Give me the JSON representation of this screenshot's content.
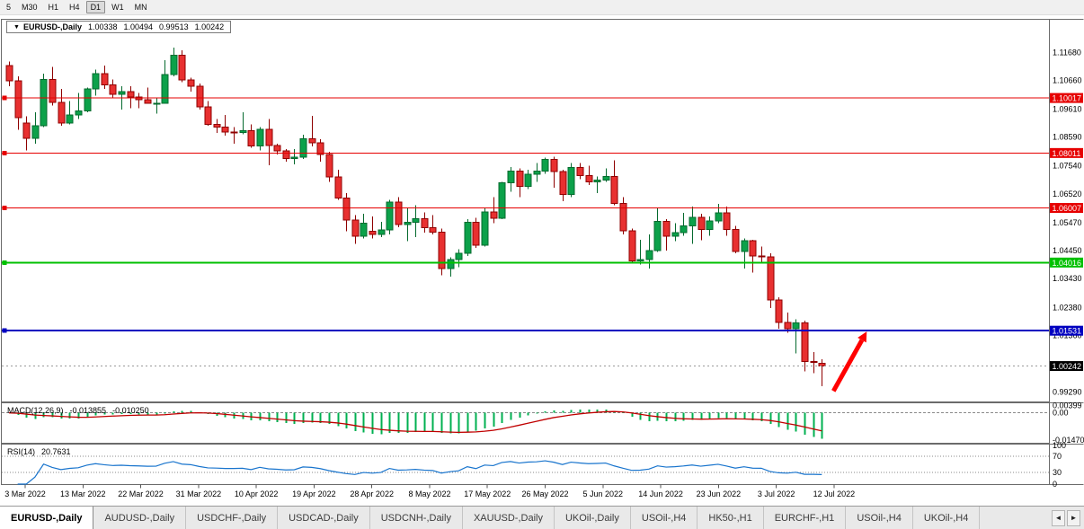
{
  "toolbar": {
    "timeframes": [
      {
        "label": "5",
        "active": false
      },
      {
        "label": "M30",
        "active": false
      },
      {
        "label": "H1",
        "active": false
      },
      {
        "label": "H4",
        "active": false
      },
      {
        "label": "D1",
        "active": true
      },
      {
        "label": "W1",
        "active": false
      },
      {
        "label": "MN",
        "active": false
      }
    ]
  },
  "chart_header": {
    "triangle": "▼",
    "symbol": "EURUSD-,Daily",
    "open": "1.00338",
    "high": "1.00494",
    "low": "0.99513",
    "close": "1.00242"
  },
  "price_axis_ticks": [
    "1.11680",
    "1.10660",
    "1.09610",
    "1.08590",
    "1.07540",
    "1.06520",
    "1.05470",
    "1.04450",
    "1.03430",
    "1.02380",
    "1.01360",
    "0.99290"
  ],
  "hlines": [
    {
      "price": 1.10017,
      "label": "1.10017",
      "color": "#e60000",
      "width": 1
    },
    {
      "price": 1.08011,
      "label": "1.08011",
      "color": "#e60000",
      "width": 1
    },
    {
      "price": 1.06007,
      "label": "1.06007",
      "color": "#e60000",
      "width": 1
    },
    {
      "price": 1.04016,
      "label": "1.04016",
      "color": "#00c000",
      "width": 2
    },
    {
      "price": 1.01531,
      "label": "1.01531",
      "color": "#0000c0",
      "width": 2
    }
  ],
  "current_price": {
    "price": 1.00242,
    "label": "1.00242",
    "color": "#000000"
  },
  "date_axis": [
    "3 Mar 2022",
    "13 Mar 2022",
    "22 Mar 2022",
    "31 Mar 2022",
    "10 Apr 2022",
    "19 Apr 2022",
    "28 Apr 2022",
    "8 May 2022",
    "17 May 2022",
    "26 May 2022",
    "5 Jun 2022",
    "14 Jun 2022",
    "23 Jun 2022",
    "3 Jul 2022",
    "12 Jul 2022"
  ],
  "macd_panel": {
    "label": "MACD(12,26,9)",
    "value_main": "-0.013855",
    "value_signal": "-0.010250",
    "axis_max": "0.00399",
    "axis_zero": "0.00",
    "axis_min": "-0.01470",
    "histogram_color": "#00b050",
    "signal_color": "#c00000"
  },
  "rsi_panel": {
    "label": "RSI(14)",
    "value": "20.7631",
    "axis_labels": [
      "100",
      "70",
      "30",
      "0"
    ],
    "levels": [
      70,
      30
    ],
    "line_color": "#1874cd"
  },
  "tabs": [
    {
      "label": "EURUSD-,Daily",
      "active": true
    },
    {
      "label": "AUDUSD-,Daily",
      "active": false
    },
    {
      "label": "USDCHF-,Daily",
      "active": false
    },
    {
      "label": "USDCAD-,Daily",
      "active": false
    },
    {
      "label": "USDCNH-,Daily",
      "active": false
    },
    {
      "label": "XAUUSD-,Daily",
      "active": false
    },
    {
      "label": "UKOil-,Daily",
      "active": false
    },
    {
      "label": "USOil-,H4",
      "active": false
    },
    {
      "label": "HK50-,H1",
      "active": false
    },
    {
      "label": "EURCHF-,H1",
      "active": false
    },
    {
      "label": "USOil-,H4",
      "active": false
    },
    {
      "label": "UKOil-,H4",
      "active": false
    }
  ],
  "tab_scroll": {
    "left": "◄",
    "right": "►"
  },
  "chart_data": {
    "type": "candlestick",
    "title": "EURUSD-,Daily",
    "timeframe": "Daily",
    "ylim": [
      0.9895,
      1.1287
    ],
    "bull_color": "#0ca14a",
    "bear_color": "#e83030",
    "bull_stroke": "#056a2e",
    "bear_stroke": "#8f0000",
    "arrow": {
      "i1": 95.35,
      "p1": 0.9933,
      "i2": 99.2,
      "p2": 1.015,
      "color": "#ff0000"
    },
    "ohlc": [
      [
        1.112,
        1.1135,
        1.1045,
        1.1065
      ],
      [
        1.1065,
        1.108,
        1.0885,
        1.093
      ],
      [
        1.091,
        1.0935,
        1.081,
        1.0855
      ],
      [
        1.0855,
        1.095,
        1.0835,
        1.09
      ],
      [
        1.09,
        1.109,
        1.0895,
        1.107
      ],
      [
        1.107,
        1.1115,
        1.0975,
        1.0985
      ],
      [
        1.0985,
        1.1035,
        1.09,
        1.091
      ],
      [
        1.091,
        1.099,
        1.0905,
        1.094
      ],
      [
        1.094,
        1.102,
        1.0925,
        1.0955
      ],
      [
        1.0955,
        1.104,
        1.095,
        1.1035
      ],
      [
        1.1035,
        1.1105,
        1.101,
        1.109
      ],
      [
        1.109,
        1.112,
        1.1035,
        1.105
      ],
      [
        1.105,
        1.107,
        1.1,
        1.1015
      ],
      [
        1.1015,
        1.1045,
        1.096,
        1.1025
      ],
      [
        1.1025,
        1.1045,
        1.0965,
        1.1005
      ],
      [
        1.1005,
        1.102,
        1.0965,
        1.0995
      ],
      [
        1.0995,
        1.104,
        1.098,
        1.0982
      ],
      [
        1.0982,
        1.1,
        1.0945,
        1.0983
      ],
      [
        1.0983,
        1.114,
        1.098,
        1.1087
      ],
      [
        1.1087,
        1.1185,
        1.108,
        1.1157
      ],
      [
        1.1157,
        1.1175,
        1.106,
        1.1067
      ],
      [
        1.1067,
        1.1075,
        1.1025,
        1.1045
      ],
      [
        1.1045,
        1.1055,
        1.096,
        1.097
      ],
      [
        1.097,
        1.099,
        1.09,
        1.0905
      ],
      [
        1.0905,
        1.0925,
        1.0875,
        1.0895
      ],
      [
        1.0895,
        1.094,
        1.0865,
        1.0878
      ],
      [
        1.0878,
        1.0895,
        1.0835,
        1.0876
      ],
      [
        1.0876,
        1.095,
        1.087,
        1.0883
      ],
      [
        1.0883,
        1.0905,
        1.082,
        1.0827
      ],
      [
        1.0827,
        1.0895,
        1.081,
        1.0888
      ],
      [
        1.0888,
        1.0925,
        1.0757,
        1.0828
      ],
      [
        1.0828,
        1.0835,
        1.0795,
        1.0808
      ],
      [
        1.0808,
        1.0815,
        1.077,
        1.0781
      ],
      [
        1.0781,
        1.0815,
        1.076,
        1.0786
      ],
      [
        1.0786,
        1.0867,
        1.078,
        1.0853
      ],
      [
        1.0853,
        1.0936,
        1.0825,
        1.0838
      ],
      [
        1.0838,
        1.0852,
        1.077,
        1.0795
      ],
      [
        1.0795,
        1.0805,
        1.0695,
        1.0714
      ],
      [
        1.0714,
        1.074,
        1.063,
        1.0637
      ],
      [
        1.0637,
        1.0655,
        1.0515,
        1.0556
      ],
      [
        1.0556,
        1.0575,
        1.047,
        1.0498
      ],
      [
        1.0498,
        1.058,
        1.049,
        1.0545
      ],
      [
        1.0515,
        1.057,
        1.049,
        1.0505
      ],
      [
        1.0505,
        1.055,
        1.0495,
        1.052
      ],
      [
        1.052,
        1.063,
        1.0505,
        1.0622
      ],
      [
        1.0622,
        1.064,
        1.053,
        1.054
      ],
      [
        1.054,
        1.06,
        1.048,
        1.0548
      ],
      [
        1.0548,
        1.061,
        1.0495,
        1.0561
      ],
      [
        1.0561,
        1.0585,
        1.051,
        1.0529
      ],
      [
        1.0529,
        1.0575,
        1.0505,
        1.0513
      ],
      [
        1.0513,
        1.0525,
        1.0355,
        1.0379
      ],
      [
        1.0379,
        1.042,
        1.035,
        1.0412
      ],
      [
        1.0412,
        1.045,
        1.0385,
        1.0435
      ],
      [
        1.0435,
        1.056,
        1.0425,
        1.0548
      ],
      [
        1.0548,
        1.0565,
        1.0455,
        1.0465
      ],
      [
        1.0465,
        1.06,
        1.046,
        1.0586
      ],
      [
        1.0586,
        1.064,
        1.0545,
        1.0563
      ],
      [
        1.0563,
        1.0695,
        1.056,
        1.0692
      ],
      [
        1.0692,
        1.075,
        1.066,
        1.0735
      ],
      [
        1.0735,
        1.0745,
        1.064,
        1.068
      ],
      [
        1.068,
        1.074,
        1.067,
        1.0723
      ],
      [
        1.0723,
        1.0765,
        1.0695,
        1.0735
      ],
      [
        1.0735,
        1.0785,
        1.0725,
        1.0778
      ],
      [
        1.0778,
        1.0788,
        1.0675,
        1.0733
      ],
      [
        1.0733,
        1.074,
        1.0625,
        1.065
      ],
      [
        1.065,
        1.0765,
        1.064,
        1.0748
      ],
      [
        1.0748,
        1.0765,
        1.0705,
        1.0719
      ],
      [
        1.0719,
        1.0755,
        1.0685,
        1.0695
      ],
      [
        1.0695,
        1.0715,
        1.0655,
        1.0703
      ],
      [
        1.0703,
        1.0745,
        1.0695,
        1.0716
      ],
      [
        1.0716,
        1.0775,
        1.061,
        1.0617
      ],
      [
        1.0617,
        1.064,
        1.0505,
        1.0518
      ],
      [
        1.0518,
        1.0525,
        1.04,
        1.0408
      ],
      [
        1.0408,
        1.0485,
        1.0395,
        1.0413
      ],
      [
        1.0413,
        1.0505,
        1.038,
        1.0445
      ],
      [
        1.0445,
        1.06,
        1.044,
        1.0551
      ],
      [
        1.0551,
        1.056,
        1.0445,
        1.0497
      ],
      [
        1.0497,
        1.0545,
        1.048,
        1.0511
      ],
      [
        1.0511,
        1.0582,
        1.05,
        1.0535
      ],
      [
        1.0535,
        1.0605,
        1.047,
        1.0566
      ],
      [
        1.0566,
        1.058,
        1.0483,
        1.0522
      ],
      [
        1.0522,
        1.057,
        1.05,
        1.0553
      ],
      [
        1.0553,
        1.0615,
        1.0545,
        1.0583
      ],
      [
        1.0583,
        1.0605,
        1.05,
        1.0523
      ],
      [
        1.0523,
        1.0535,
        1.0435,
        1.0442
      ],
      [
        1.0442,
        1.049,
        1.038,
        1.0482
      ],
      [
        1.0482,
        1.0485,
        1.0365,
        1.0425
      ],
      [
        1.0425,
        1.046,
        1.04,
        1.0422
      ],
      [
        1.0422,
        1.0435,
        1.0235,
        1.0265
      ],
      [
        1.0265,
        1.0275,
        1.016,
        1.0183
      ],
      [
        1.0183,
        1.022,
        1.0145,
        1.016
      ],
      [
        1.016,
        1.0195,
        1.007,
        1.0182
      ],
      [
        1.0182,
        1.019,
        1.0005,
        1.004
      ],
      [
        1.004,
        1.0075,
        0.9998,
        1.0037
      ],
      [
        1.00338,
        1.00494,
        0.99513,
        1.00242
      ]
    ]
  }
}
